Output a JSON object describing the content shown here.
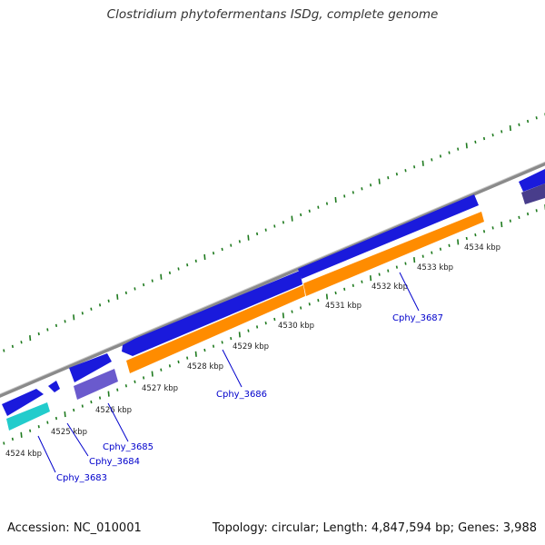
{
  "title": "Clostridium phytofermentans ISDg, complete genome",
  "footer": {
    "accession": "Accession: NC_010001",
    "summary": "Topology: circular; Length: 4,847,594 bp; Genes: 3,988"
  },
  "colors": {
    "backbone": "#8a8a8a",
    "tick": "#1e7a1e",
    "forward_gene": "#1a1adc",
    "reverse_gene_orange": "#ff8c00",
    "reverse_gene_cyan": "#22cccc",
    "reverse_gene_violet": "#6a5acd",
    "reverse_gene_dark": "#483d8b",
    "label": "#0000cc"
  },
  "ticks": [
    {
      "label": "4524 kbp"
    },
    {
      "label": "4525 kbp"
    },
    {
      "label": "4526 kbp"
    },
    {
      "label": "4527 kbp"
    },
    {
      "label": "4528 kbp"
    },
    {
      "label": "4529 kbp"
    },
    {
      "label": "4530 kbp"
    },
    {
      "label": "4531 kbp"
    },
    {
      "label": "4532 kbp"
    },
    {
      "label": "4533 kbp"
    },
    {
      "label": "4534 kbp"
    }
  ],
  "genes": [
    {
      "name": "Cphy_3683"
    },
    {
      "name": "Cphy_3684"
    },
    {
      "name": "Cphy_3685"
    },
    {
      "name": "Cphy_3686"
    },
    {
      "name": "Cphy_3687"
    }
  ]
}
